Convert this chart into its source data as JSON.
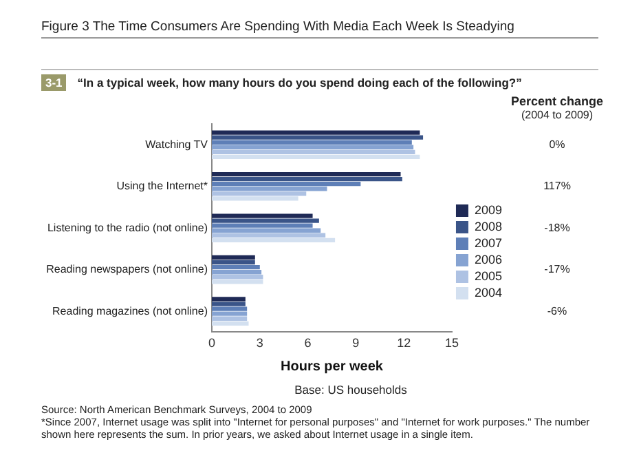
{
  "chart_data": {
    "type": "bar",
    "orientation": "horizontal",
    "title": "Figure 3 The Time Consumers Are Spending With Media Each Week Is Steadying",
    "subtitle": "“In a typical week, how many hours do you spend doing each of the following?”",
    "xlabel": "Hours per week",
    "categories": [
      "Watching TV",
      "Using the Internet*",
      "Listening to the radio (not online)",
      "Reading newspapers (not online)",
      "Reading magazines (not online)"
    ],
    "series": [
      {
        "name": "2009",
        "color": "#1f2a56",
        "values": [
          13.0,
          11.8,
          6.3,
          2.7,
          2.1
        ]
      },
      {
        "name": "2008",
        "color": "#3a5488",
        "values": [
          13.2,
          11.9,
          6.7,
          2.7,
          2.1
        ]
      },
      {
        "name": "2007",
        "color": "#5e7fb7",
        "values": [
          12.5,
          9.3,
          6.3,
          3.0,
          2.2
        ]
      },
      {
        "name": "2006",
        "color": "#86a3d2",
        "values": [
          12.6,
          7.2,
          6.8,
          3.1,
          2.2
        ]
      },
      {
        "name": "2005",
        "color": "#aec2e3",
        "values": [
          12.7,
          5.9,
          7.1,
          3.2,
          2.2
        ]
      },
      {
        "name": "2004",
        "color": "#d3e0f0",
        "values": [
          13.0,
          5.4,
          7.7,
          3.2,
          2.3
        ]
      }
    ],
    "xlim": [
      0,
      15
    ],
    "xticks": [
      0,
      3,
      6,
      9,
      12,
      15
    ],
    "grid": false,
    "legend": "right",
    "annotations": [
      "3-1",
      "Percent change",
      "(2004 to 2009)",
      "0%",
      "117%",
      "-18%",
      "-17%",
      "-6%",
      "Base: US households",
      "Source: North American Benchmark Surveys, 2004 to 2009",
      "*Since 2007, Internet usage was split into \"Internet for personal purposes\" and \"Internet for work purposes.\" The number shown here represents the sum. In prior years, we asked about Internet usage in a single item."
    ]
  }
}
